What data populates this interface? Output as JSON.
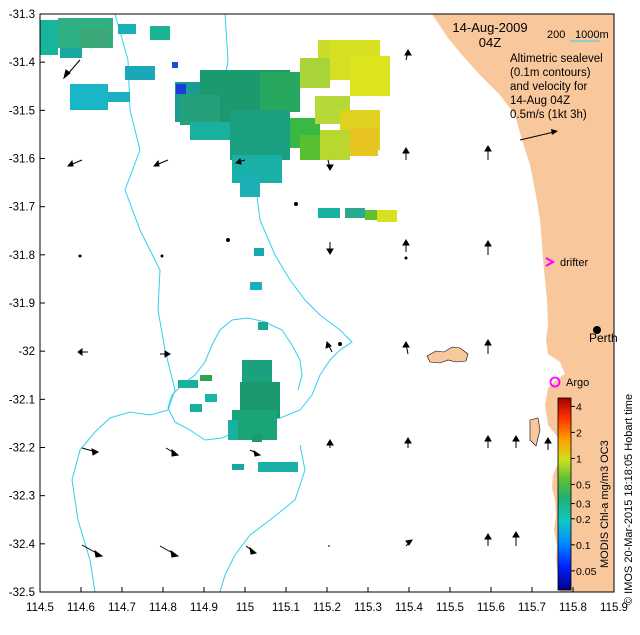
{
  "map": {
    "date": "14-Aug-2009",
    "time": "04Z",
    "scale_label_left": "200",
    "scale_label_right": "1000m",
    "legend_lines": [
      "Altimetric sealevel",
      "(0.1m contours)",
      "and velocity for",
      "14-Aug 04Z",
      "0.5m/s (1kt 3h)"
    ],
    "x_axis": {
      "ticks": [
        "114.5",
        "114.6",
        "114.7",
        "114.8",
        "114.9",
        "115",
        "115.1",
        "115.2",
        "115.3",
        "115.4",
        "115.5",
        "115.6",
        "115.7",
        "115.8",
        "115.9"
      ],
      "range": [
        114.5,
        115.9
      ]
    },
    "y_axis": {
      "ticks": [
        "-31.3",
        "-31.4",
        "-31.5",
        "-31.6",
        "-31.7",
        "-31.8",
        "-31.9",
        "-32",
        "-32.1",
        "-32.2",
        "-32.3",
        "-32.4",
        "-32.5"
      ],
      "range": [
        -32.5,
        -31.3
      ]
    },
    "markers": {
      "drifter": "drifter",
      "argo": "Argo",
      "perth": "Perth"
    },
    "colorbar": {
      "labels": [
        "4",
        "2",
        "1",
        "0.5",
        "0.3",
        "0.2",
        "0.1",
        "0.05"
      ],
      "values": [
        4,
        2,
        1,
        0.5,
        0.3,
        0.2,
        0.1,
        0.05
      ],
      "range": [
        0.03,
        5
      ],
      "title": "MODIS Chl-a mg/m3 OC3"
    },
    "credit": "© IMOS 20-Mar-2015 18:18:05 Hobart time",
    "colors": {
      "land": "#f9c79c",
      "isobath": "#30d0f0",
      "arrow": "#000000",
      "drifter": "#ff00ff",
      "argo": "#ff00ff"
    }
  }
}
